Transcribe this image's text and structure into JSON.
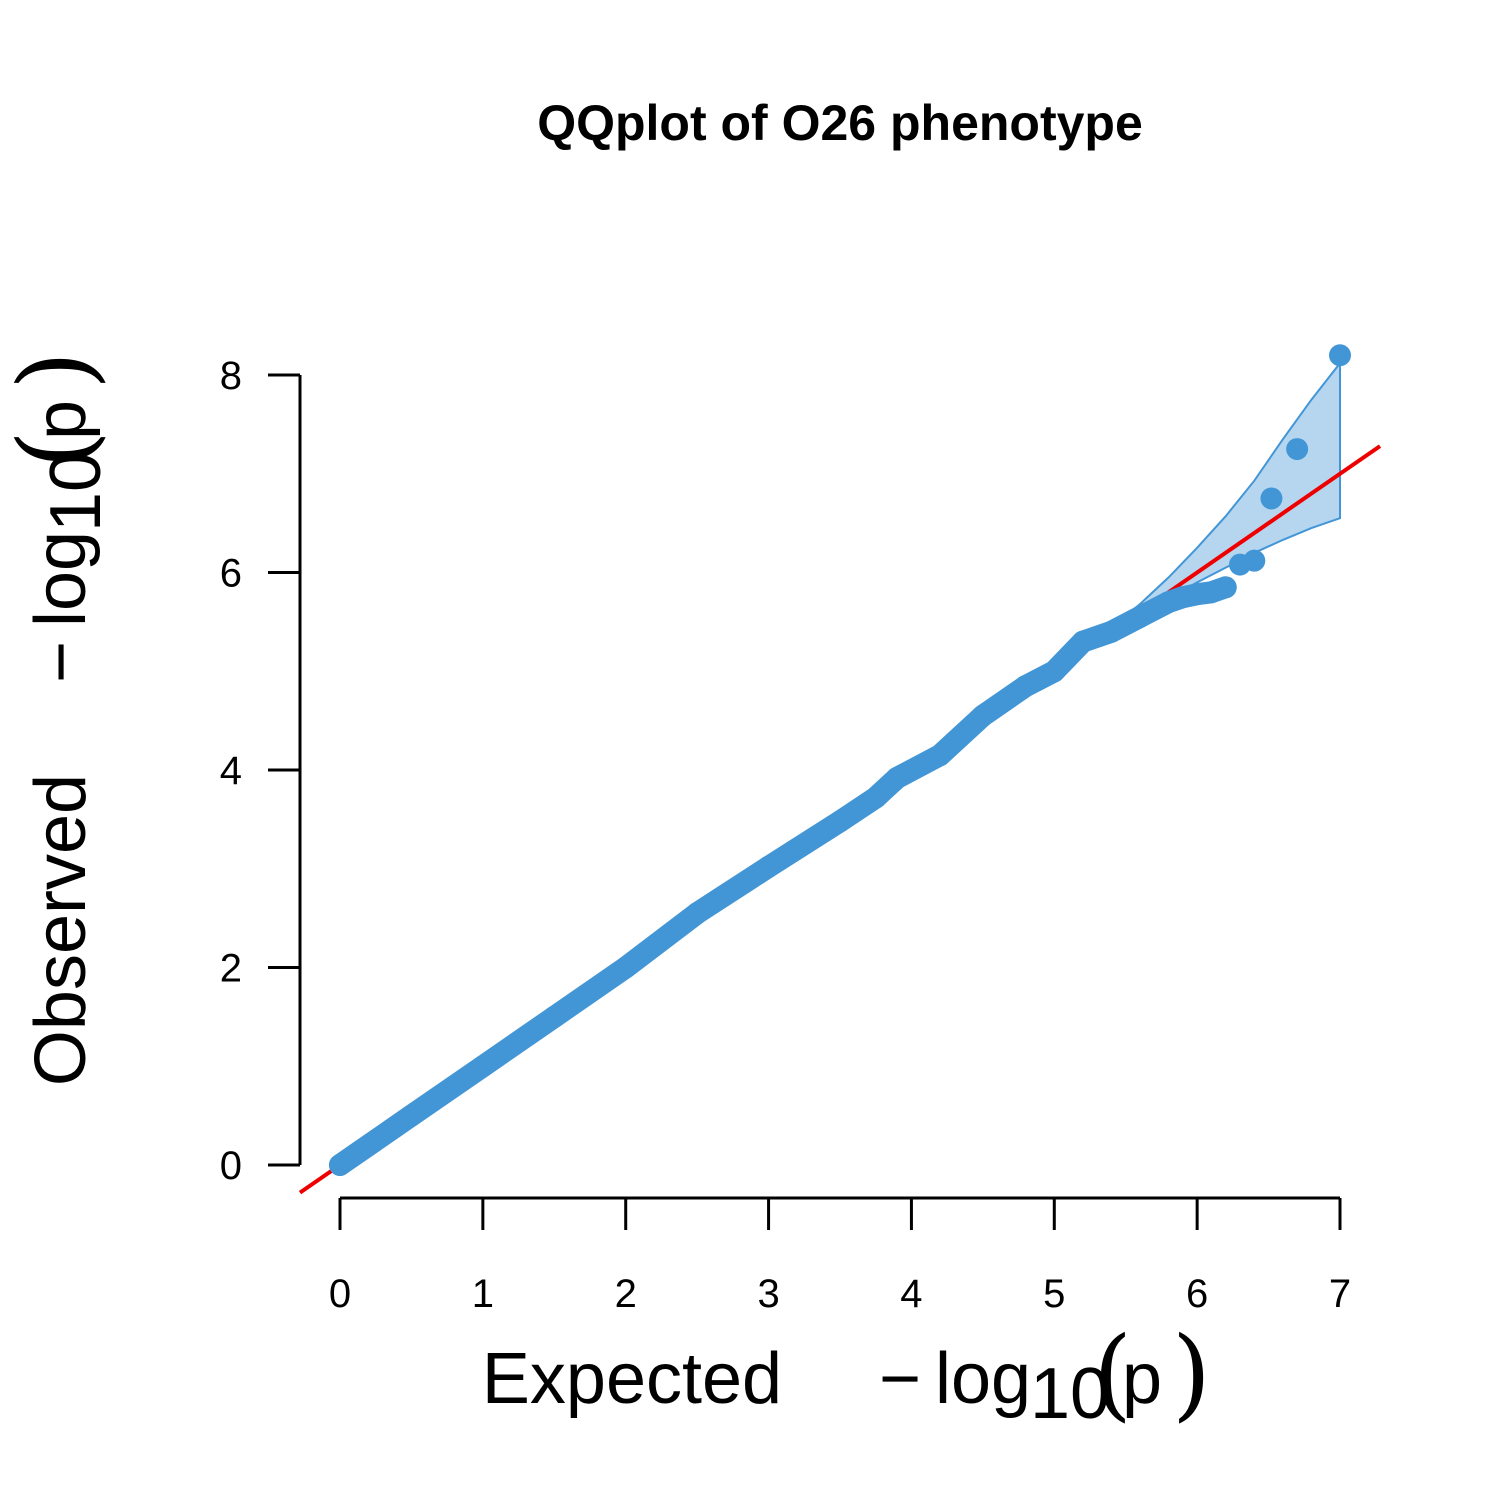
{
  "chart_data": {
    "type": "scatter",
    "title": "QQplot of O26 phenotype",
    "xlabel": {
      "word": "Expected",
      "minus": "−",
      "log": "log",
      "base": "10",
      "var": "p"
    },
    "ylabel": {
      "word": "Observed",
      "minus": "−",
      "log": "log",
      "base": "10",
      "var": "p"
    },
    "xlim": [
      0,
      7
    ],
    "ylim": [
      0,
      8
    ],
    "x_ticks": [
      0,
      1,
      2,
      3,
      4,
      5,
      6,
      7
    ],
    "y_ticks": [
      0,
      2,
      4,
      6,
      8
    ],
    "x_tick_labels": [
      "0",
      "1",
      "2",
      "3",
      "4",
      "5",
      "6",
      "7"
    ],
    "y_tick_labels": [
      "0",
      "2",
      "4",
      "6",
      "8"
    ],
    "grid": false,
    "legend": "none",
    "colors": {
      "points": "#4396d6",
      "band_fill": "#b6d6f0",
      "band_stroke": "#4396d6",
      "reference_line": "#ee0000"
    },
    "reference_line": {
      "slope": 1,
      "intercept": 0
    },
    "confidence_band": {
      "x": [
        5.4,
        5.6,
        5.8,
        6.0,
        6.2,
        6.4,
        6.6,
        6.8,
        7.0
      ],
      "upper": [
        5.45,
        5.68,
        5.95,
        6.25,
        6.57,
        6.93,
        7.35,
        7.75,
        8.12
      ],
      "lower": [
        5.4,
        5.57,
        5.74,
        5.9,
        6.05,
        6.2,
        6.33,
        6.45,
        6.55
      ]
    },
    "series": [
      {
        "points": [
          [
            0.0,
            0.0
          ],
          [
            0.5,
            0.5
          ],
          [
            1.0,
            1.0
          ],
          [
            1.5,
            1.5
          ],
          [
            2.0,
            2.0
          ],
          [
            2.5,
            2.55
          ],
          [
            3.0,
            3.02
          ],
          [
            3.5,
            3.48
          ],
          [
            3.75,
            3.72
          ],
          [
            3.9,
            3.92
          ],
          [
            4.2,
            4.15
          ],
          [
            4.5,
            4.55
          ],
          [
            4.8,
            4.85
          ],
          [
            5.0,
            5.0
          ],
          [
            5.2,
            5.3
          ],
          [
            5.4,
            5.4
          ],
          [
            5.6,
            5.55
          ],
          [
            5.8,
            5.7
          ],
          [
            5.9,
            5.75
          ],
          [
            6.0,
            5.78
          ],
          [
            6.1,
            5.8
          ],
          [
            6.2,
            5.85
          ],
          [
            6.3,
            6.08
          ],
          [
            6.4,
            6.12
          ],
          [
            6.52,
            6.75
          ],
          [
            6.7,
            7.25
          ],
          [
            7.0,
            8.2
          ]
        ]
      }
    ]
  }
}
